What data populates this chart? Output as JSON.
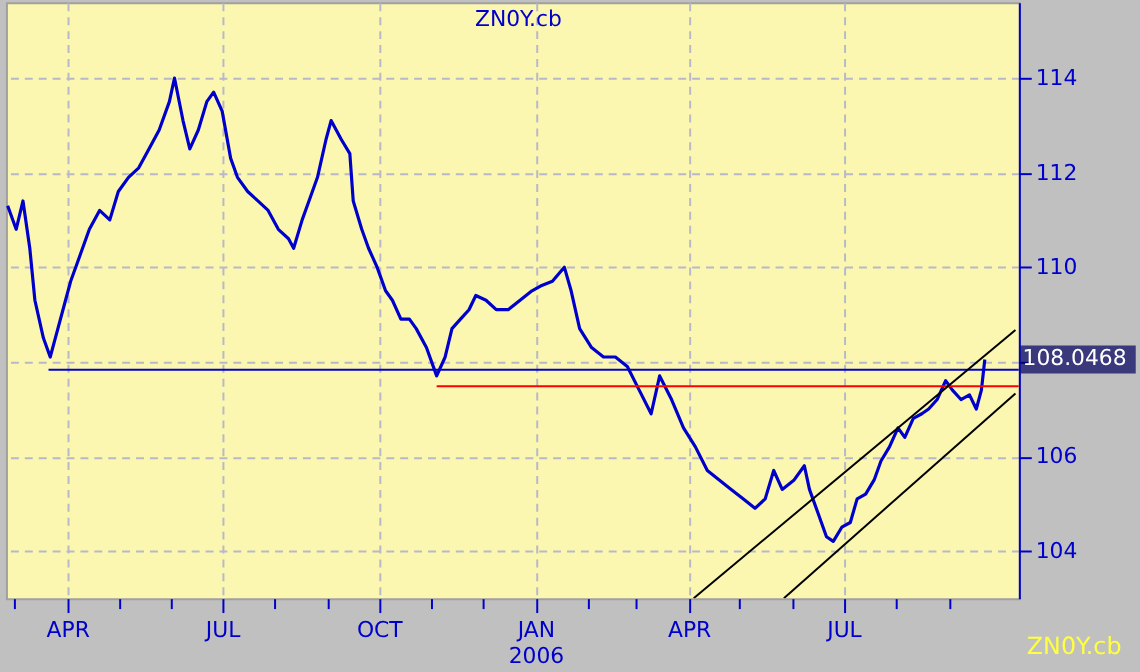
{
  "chart_data": {
    "type": "line",
    "title": "ZN0Y.cb",
    "x": [
      "2005-02-25",
      "2005-03-02",
      "2005-03-06",
      "2005-03-10",
      "2005-03-13",
      "2005-03-18",
      "2005-03-22",
      "2005-03-25",
      "2005-03-31",
      "2005-04-03",
      "2005-04-08",
      "2005-04-14",
      "2005-04-20",
      "2005-04-26",
      "2005-05-01",
      "2005-05-07",
      "2005-05-13",
      "2005-05-19",
      "2005-05-25",
      "2005-05-31",
      "2005-06-03",
      "2005-06-08",
      "2005-06-12",
      "2005-06-17",
      "2005-06-22",
      "2005-06-26",
      "2005-07-01",
      "2005-07-06",
      "2005-07-10",
      "2005-07-16",
      "2005-07-22",
      "2005-07-28",
      "2005-08-03",
      "2005-08-09",
      "2005-08-12",
      "2005-08-17",
      "2005-08-21",
      "2005-08-26",
      "2005-08-31",
      "2005-09-03",
      "2005-09-09",
      "2005-09-14",
      "2005-09-16",
      "2005-09-21",
      "2005-09-25",
      "2005-09-30",
      "2005-10-05",
      "2005-10-09",
      "2005-10-14",
      "2005-10-19",
      "2005-10-23",
      "2005-10-29",
      "2005-11-04",
      "2005-11-09",
      "2005-11-13",
      "2005-11-18",
      "2005-11-23",
      "2005-11-27",
      "2005-12-03",
      "2005-12-09",
      "2005-12-16",
      "2005-12-23",
      "2005-12-30",
      "2006-01-04",
      "2006-01-11",
      "2006-01-18",
      "2006-01-22",
      "2006-01-27",
      "2006-02-03",
      "2006-02-10",
      "2006-02-17",
      "2006-02-24",
      "2006-03-03",
      "2006-03-10",
      "2006-03-15",
      "2006-03-22",
      "2006-03-29",
      "2006-04-05",
      "2006-04-12",
      "2006-04-19",
      "2006-04-26",
      "2006-05-03",
      "2006-05-10",
      "2006-05-16",
      "2006-05-21",
      "2006-05-26",
      "2006-06-02",
      "2006-06-08",
      "2006-06-11",
      "2006-06-16",
      "2006-06-21",
      "2006-06-25",
      "2006-06-30",
      "2006-07-05",
      "2006-07-09",
      "2006-07-14",
      "2006-07-19",
      "2006-07-23",
      "2006-07-28",
      "2006-08-02",
      "2006-08-06",
      "2006-08-11",
      "2006-08-16",
      "2006-08-20",
      "2006-08-25",
      "2006-08-30",
      "2006-09-03",
      "2006-09-08",
      "2006-09-13",
      "2006-09-17",
      "2006-09-20",
      "2006-09-22"
    ],
    "series": [
      {
        "color": "#0000cc",
        "values": [
          111.3,
          110.8,
          111.4,
          110.4,
          109.3,
          108.5,
          108.1,
          108.5,
          109.3,
          109.7,
          110.2,
          110.8,
          111.2,
          111.0,
          111.6,
          111.9,
          112.1,
          112.5,
          112.9,
          113.5,
          114.0,
          113.1,
          112.5,
          112.9,
          113.5,
          113.7,
          113.3,
          112.3,
          111.9,
          111.6,
          111.4,
          111.2,
          110.8,
          110.6,
          110.4,
          111.0,
          111.4,
          111.9,
          112.7,
          113.1,
          112.7,
          112.4,
          111.4,
          110.8,
          110.4,
          110.0,
          109.5,
          109.3,
          108.9,
          108.9,
          108.7,
          108.3,
          107.7,
          108.1,
          108.7,
          108.9,
          109.1,
          109.4,
          109.3,
          109.1,
          109.1,
          109.3,
          109.5,
          109.6,
          109.7,
          110.0,
          109.5,
          108.7,
          108.3,
          108.1,
          108.1,
          107.9,
          107.4,
          106.9,
          107.7,
          107.2,
          106.6,
          106.2,
          105.7,
          105.5,
          105.3,
          105.1,
          104.9,
          105.1,
          105.7,
          105.3,
          105.5,
          105.8,
          105.3,
          104.8,
          104.3,
          104.2,
          104.5,
          104.6,
          105.1,
          105.2,
          105.5,
          105.9,
          106.2,
          106.6,
          106.4,
          106.8,
          106.9,
          107.0,
          107.2,
          107.6,
          107.4,
          107.2,
          107.3,
          107.0,
          107.4,
          108.0468
        ]
      },
      {
        "type": "line",
        "color": "#0000cc",
        "x": [
          "2005-03-21",
          "2006-10-12"
        ],
        "values": [
          107.83,
          107.83
        ]
      },
      {
        "type": "line",
        "color": "#ff0000",
        "x": [
          "2005-11-04",
          "2006-10-12"
        ],
        "values": [
          107.48,
          107.48
        ]
      },
      {
        "type": "line",
        "color": "#000000",
        "x": [
          "2006-04-04",
          "2006-10-10"
        ],
        "values": [
          103.0,
          108.67
        ]
      },
      {
        "type": "line",
        "color": "#000000",
        "x": [
          "2006-05-27",
          "2006-10-10"
        ],
        "values": [
          103.0,
          107.33
        ]
      }
    ],
    "xlim": [
      "2005-02-24",
      "2006-10-12"
    ],
    "xticks": [
      {
        "value": "2005-03-01",
        "label": null
      },
      {
        "value": "2005-04-01",
        "label": "APR"
      },
      {
        "value": "2005-05-01",
        "label": null
      },
      {
        "value": "2005-06-01",
        "label": null
      },
      {
        "value": "2005-07-01",
        "label": "JUL"
      },
      {
        "value": "2005-08-01",
        "label": null
      },
      {
        "value": "2005-09-01",
        "label": null
      },
      {
        "value": "2005-10-01",
        "label": "OCT"
      },
      {
        "value": "2005-11-01",
        "label": null
      },
      {
        "value": "2005-12-01",
        "label": null
      },
      {
        "value": "2006-01-01",
        "label": "JAN\n2006"
      },
      {
        "value": "2006-02-01",
        "label": null
      },
      {
        "value": "2006-03-01",
        "label": null
      },
      {
        "value": "2006-04-01",
        "label": "APR"
      },
      {
        "value": "2006-05-01",
        "label": null
      },
      {
        "value": "2006-06-01",
        "label": null
      },
      {
        "value": "2006-07-01",
        "label": "JUL"
      },
      {
        "value": "2006-08-01",
        "label": null
      },
      {
        "value": "2006-09-01",
        "label": null
      }
    ],
    "ylim": [
      103,
      115.6
    ],
    "yticks": [
      104,
      106,
      {
        "value": 108,
        "label": null
      },
      110,
      112,
      114
    ],
    "grid": true,
    "marker": "none",
    "line_style": "solid",
    "annotations": [
      {
        "text": "108.0468",
        "x": "2006-09-22",
        "y": 108.0468
      },
      "ZN0Y.cb"
    ]
  }
}
